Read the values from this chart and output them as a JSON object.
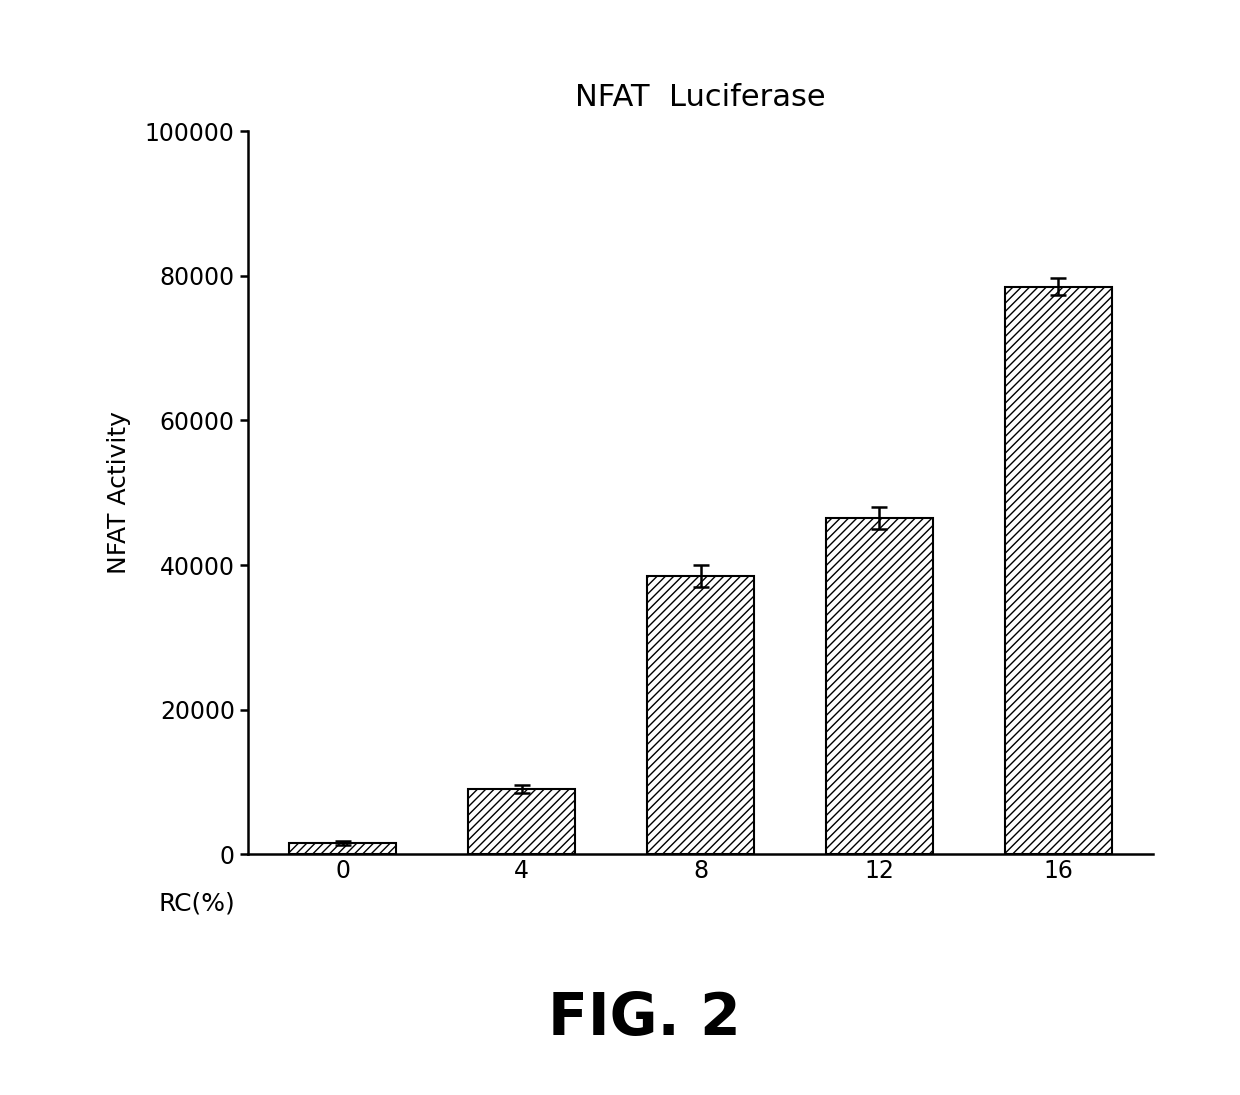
{
  "title": "NFAT  Luciferase",
  "xlabel": "RC(%)",
  "ylabel": "NFAT Activity",
  "categories": [
    "0",
    "4",
    "8",
    "12",
    "16"
  ],
  "values": [
    1500,
    9000,
    38500,
    46500,
    78500
  ],
  "errors": [
    300,
    500,
    1500,
    1500,
    1200
  ],
  "ylim": [
    0,
    100000
  ],
  "yticks": [
    0,
    20000,
    40000,
    60000,
    80000,
    100000
  ],
  "bar_color": "#ffffff",
  "bar_edgecolor": "#000000",
  "hatch": "////",
  "fig_caption": "FIG. 2",
  "title_fontsize": 22,
  "label_fontsize": 18,
  "tick_fontsize": 17,
  "caption_fontsize": 42,
  "background_color": "#ffffff"
}
